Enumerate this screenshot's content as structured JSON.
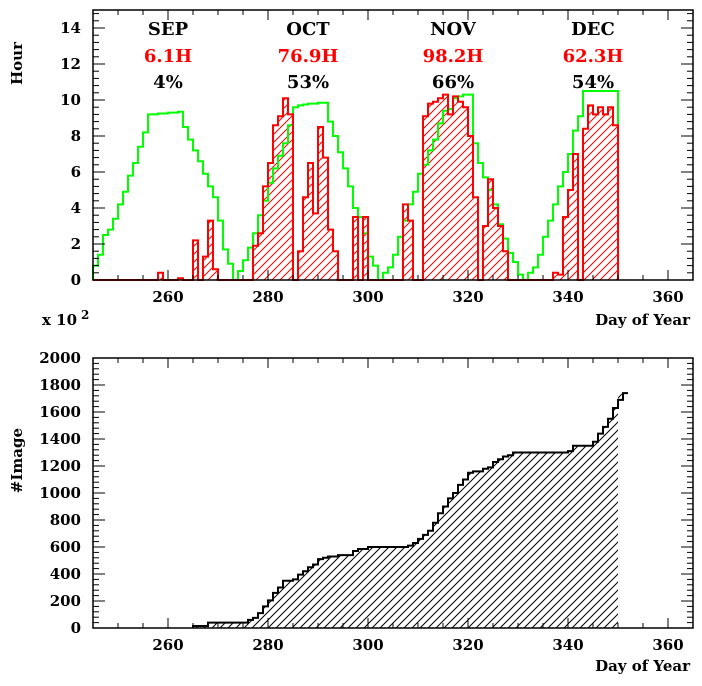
{
  "chart_data": [
    {
      "type": "histogram",
      "ylabel": "Hour",
      "xlabel": "Day of Year",
      "multiplier": "x 10",
      "multiplier_exp": "2",
      "xlim": [
        245,
        365
      ],
      "ylim": [
        0,
        15
      ],
      "x_ticks": [
        260,
        280,
        300,
        320,
        340,
        360
      ],
      "y_ticks": [
        0,
        2,
        4,
        6,
        8,
        10,
        12,
        14
      ],
      "colors": {
        "available": "#00ff00",
        "observed": "#ff0000"
      },
      "months": [
        {
          "name": "SEP",
          "hours": "6.1H",
          "percent": "4%",
          "x": 260
        },
        {
          "name": "OCT",
          "hours": "76.9H",
          "percent": "53%",
          "x": 288
        },
        {
          "name": "NOV",
          "hours": "98.2H",
          "percent": "66%",
          "x": 317
        },
        {
          "name": "DEC",
          "hours": "62.3H",
          "percent": "54%",
          "x": 345
        }
      ],
      "series": [
        {
          "values": [
            [
              245,
              0.8
            ],
            [
              246,
              1.4
            ],
            [
              247,
              2.5
            ],
            [
              248,
              2.8
            ],
            [
              249,
              3.4
            ],
            [
              250,
              4.2
            ],
            [
              251,
              4.9
            ],
            [
              252,
              5.8
            ],
            [
              253,
              6.5
            ],
            [
              254,
              7.4
            ],
            [
              255,
              8.2
            ],
            [
              256,
              9.2
            ],
            [
              257,
              9.2
            ],
            [
              258,
              9.25
            ],
            [
              259,
              9.25
            ],
            [
              260,
              9.3
            ],
            [
              261,
              9.3
            ],
            [
              262,
              9.35
            ],
            [
              263,
              8.5
            ],
            [
              264,
              7.8
            ],
            [
              265,
              7.2
            ],
            [
              266,
              6.6
            ],
            [
              267,
              5.9
            ],
            [
              268,
              5.2
            ],
            [
              269,
              4.6
            ],
            [
              270,
              3.3
            ],
            [
              271,
              1.7
            ],
            [
              272,
              0.9
            ],
            [
              273,
              0
            ],
            [
              274,
              0.5
            ],
            [
              275,
              1.1
            ],
            [
              276,
              1.8
            ],
            [
              277,
              2.6
            ],
            [
              278,
              3.6
            ],
            [
              279,
              4.4
            ],
            [
              280,
              5.4
            ],
            [
              281,
              6.2
            ],
            [
              282,
              6.9
            ],
            [
              283,
              7.6
            ],
            [
              284,
              8.6
            ],
            [
              285,
              9.6
            ],
            [
              286,
              9.7
            ],
            [
              287,
              9.75
            ],
            [
              288,
              9.8
            ],
            [
              289,
              9.8
            ],
            [
              290,
              9.85
            ],
            [
              291,
              9.85
            ],
            [
              292,
              8.8
            ],
            [
              293,
              8.0
            ],
            [
              294,
              7.1
            ],
            [
              295,
              6.2
            ],
            [
              296,
              5.2
            ],
            [
              297,
              4.0
            ],
            [
              298,
              3.5
            ],
            [
              299,
              2.6
            ],
            [
              300,
              1.3
            ],
            [
              301,
              0.8
            ],
            [
              302,
              0
            ],
            [
              303,
              0.4
            ],
            [
              304,
              0.7
            ],
            [
              305,
              1.4
            ],
            [
              306,
              2.4
            ],
            [
              307,
              3.3
            ],
            [
              308,
              4.2
            ],
            [
              309,
              4.9
            ],
            [
              310,
              5.9
            ],
            [
              311,
              6.4
            ],
            [
              312,
              7.2
            ],
            [
              313,
              7.8
            ],
            [
              314,
              8.7
            ],
            [
              315,
              9.4
            ],
            [
              316,
              9.5
            ],
            [
              317,
              10.1
            ],
            [
              318,
              10.2
            ],
            [
              319,
              10.3
            ],
            [
              320,
              10.3
            ],
            [
              321,
              7.6
            ],
            [
              322,
              6.5
            ],
            [
              323,
              5.7
            ],
            [
              324,
              5.0
            ],
            [
              325,
              4.2
            ],
            [
              326,
              3.1
            ],
            [
              327,
              2.3
            ],
            [
              328,
              1.5
            ],
            [
              329,
              1.0
            ],
            [
              330,
              0.3
            ],
            [
              331,
              0
            ],
            [
              332,
              0.4
            ],
            [
              333,
              0.7
            ],
            [
              334,
              1.4
            ],
            [
              335,
              2.4
            ],
            [
              336,
              3.3
            ],
            [
              337,
              4.2
            ],
            [
              338,
              5.2
            ],
            [
              339,
              6.0
            ],
            [
              340,
              7.0
            ],
            [
              341,
              8.3
            ],
            [
              342,
              9.1
            ],
            [
              343,
              10.5
            ],
            [
              344,
              10.5
            ],
            [
              345,
              10.5
            ],
            [
              346,
              10.5
            ],
            [
              347,
              10.5
            ],
            [
              348,
              10.5
            ],
            [
              349,
              10.5
            ],
            [
              350,
              0
            ]
          ]
        },
        {
          "values": [
            [
              245,
              0
            ],
            [
              258,
              0.4
            ],
            [
              259,
              0
            ],
            [
              262,
              0.1
            ],
            [
              263,
              0
            ],
            [
              265,
              2.2
            ],
            [
              266,
              0
            ],
            [
              267,
              1.3
            ],
            [
              268,
              3.3
            ],
            [
              269,
              0.6
            ],
            [
              270,
              0
            ],
            [
              277,
              1.9
            ],
            [
              278,
              2.6
            ],
            [
              279,
              5.2
            ],
            [
              280,
              6.5
            ],
            [
              281,
              8.6
            ],
            [
              282,
              9.1
            ],
            [
              283,
              10.1
            ],
            [
              284,
              9.2
            ],
            [
              285,
              0
            ],
            [
              286,
              1.6
            ],
            [
              287,
              4.6
            ],
            [
              288,
              6.5
            ],
            [
              289,
              3.7
            ],
            [
              290,
              8.5
            ],
            [
              291,
              6.8
            ],
            [
              292,
              2.8
            ],
            [
              293,
              1.6
            ],
            [
              294,
              0
            ],
            [
              295,
              0
            ],
            [
              297,
              3.5
            ],
            [
              298,
              0
            ],
            [
              299,
              3.5
            ],
            [
              300,
              0
            ],
            [
              307,
              4.2
            ],
            [
              308,
              3.3
            ],
            [
              309,
              0
            ],
            [
              310,
              0
            ],
            [
              311,
              9.1
            ],
            [
              312,
              9.8
            ],
            [
              313,
              9.9
            ],
            [
              314,
              10.1
            ],
            [
              315,
              10.3
            ],
            [
              316,
              9.2
            ],
            [
              317,
              10.2
            ],
            [
              318,
              9.9
            ],
            [
              319,
              9.6
            ],
            [
              320,
              8.0
            ],
            [
              321,
              4.6
            ],
            [
              322,
              0
            ],
            [
              323,
              3.0
            ],
            [
              324,
              5.6
            ],
            [
              325,
              4.0
            ],
            [
              326,
              3.0
            ],
            [
              327,
              1.6
            ],
            [
              328,
              0
            ],
            [
              337,
              0.4
            ],
            [
              338,
              0.3
            ],
            [
              339,
              3.5
            ],
            [
              340,
              5.0
            ],
            [
              341,
              7.0
            ],
            [
              342,
              0
            ],
            [
              343,
              8.4
            ],
            [
              344,
              9.7
            ],
            [
              345,
              9.2
            ],
            [
              346,
              9.6
            ],
            [
              347,
              9.2
            ],
            [
              348,
              9.6
            ],
            [
              349,
              8.6
            ],
            [
              350,
              0
            ]
          ]
        }
      ]
    },
    {
      "type": "cumulative-histogram",
      "ylabel": "#Image",
      "xlabel": "Day of Year",
      "xlim": [
        245,
        365
      ],
      "ylim": [
        0,
        2000
      ],
      "x_ticks": [
        260,
        280,
        300,
        320,
        340,
        360
      ],
      "y_ticks": [
        0,
        200,
        400,
        600,
        800,
        1000,
        1200,
        1400,
        1600,
        1800,
        2000
      ],
      "series": [
        {
          "values": [
            [
              265,
              15
            ],
            [
              268,
              40
            ],
            [
              276,
              60
            ],
            [
              277,
              75
            ],
            [
              278,
              110
            ],
            [
              279,
              160
            ],
            [
              280,
              205
            ],
            [
              281,
              260
            ],
            [
              282,
              300
            ],
            [
              283,
              350
            ],
            [
              285,
              360
            ],
            [
              286,
              395
            ],
            [
              287,
              420
            ],
            [
              288,
              450
            ],
            [
              289,
              470
            ],
            [
              290,
              510
            ],
            [
              291,
              520
            ],
            [
              292,
              530
            ],
            [
              294,
              540
            ],
            [
              297,
              570
            ],
            [
              298,
              585
            ],
            [
              300,
              600
            ],
            [
              308,
              610
            ],
            [
              309,
              630
            ],
            [
              310,
              660
            ],
            [
              311,
              690
            ],
            [
              312,
              720
            ],
            [
              313,
              780
            ],
            [
              314,
              850
            ],
            [
              315,
              900
            ],
            [
              316,
              960
            ],
            [
              317,
              1000
            ],
            [
              318,
              1060
            ],
            [
              319,
              1100
            ],
            [
              320,
              1150
            ],
            [
              321,
              1160
            ],
            [
              323,
              1180
            ],
            [
              324,
              1190
            ],
            [
              325,
              1230
            ],
            [
              326,
              1250
            ],
            [
              327,
              1270
            ],
            [
              328,
              1280
            ],
            [
              329,
              1300
            ],
            [
              340,
              1310
            ],
            [
              341,
              1350
            ],
            [
              345,
              1380
            ],
            [
              346,
              1440
            ],
            [
              347,
              1490
            ],
            [
              348,
              1550
            ],
            [
              349,
              1630
            ],
            [
              350,
              1690
            ],
            [
              351,
              1740
            ]
          ],
          "end": 352
        }
      ]
    }
  ]
}
